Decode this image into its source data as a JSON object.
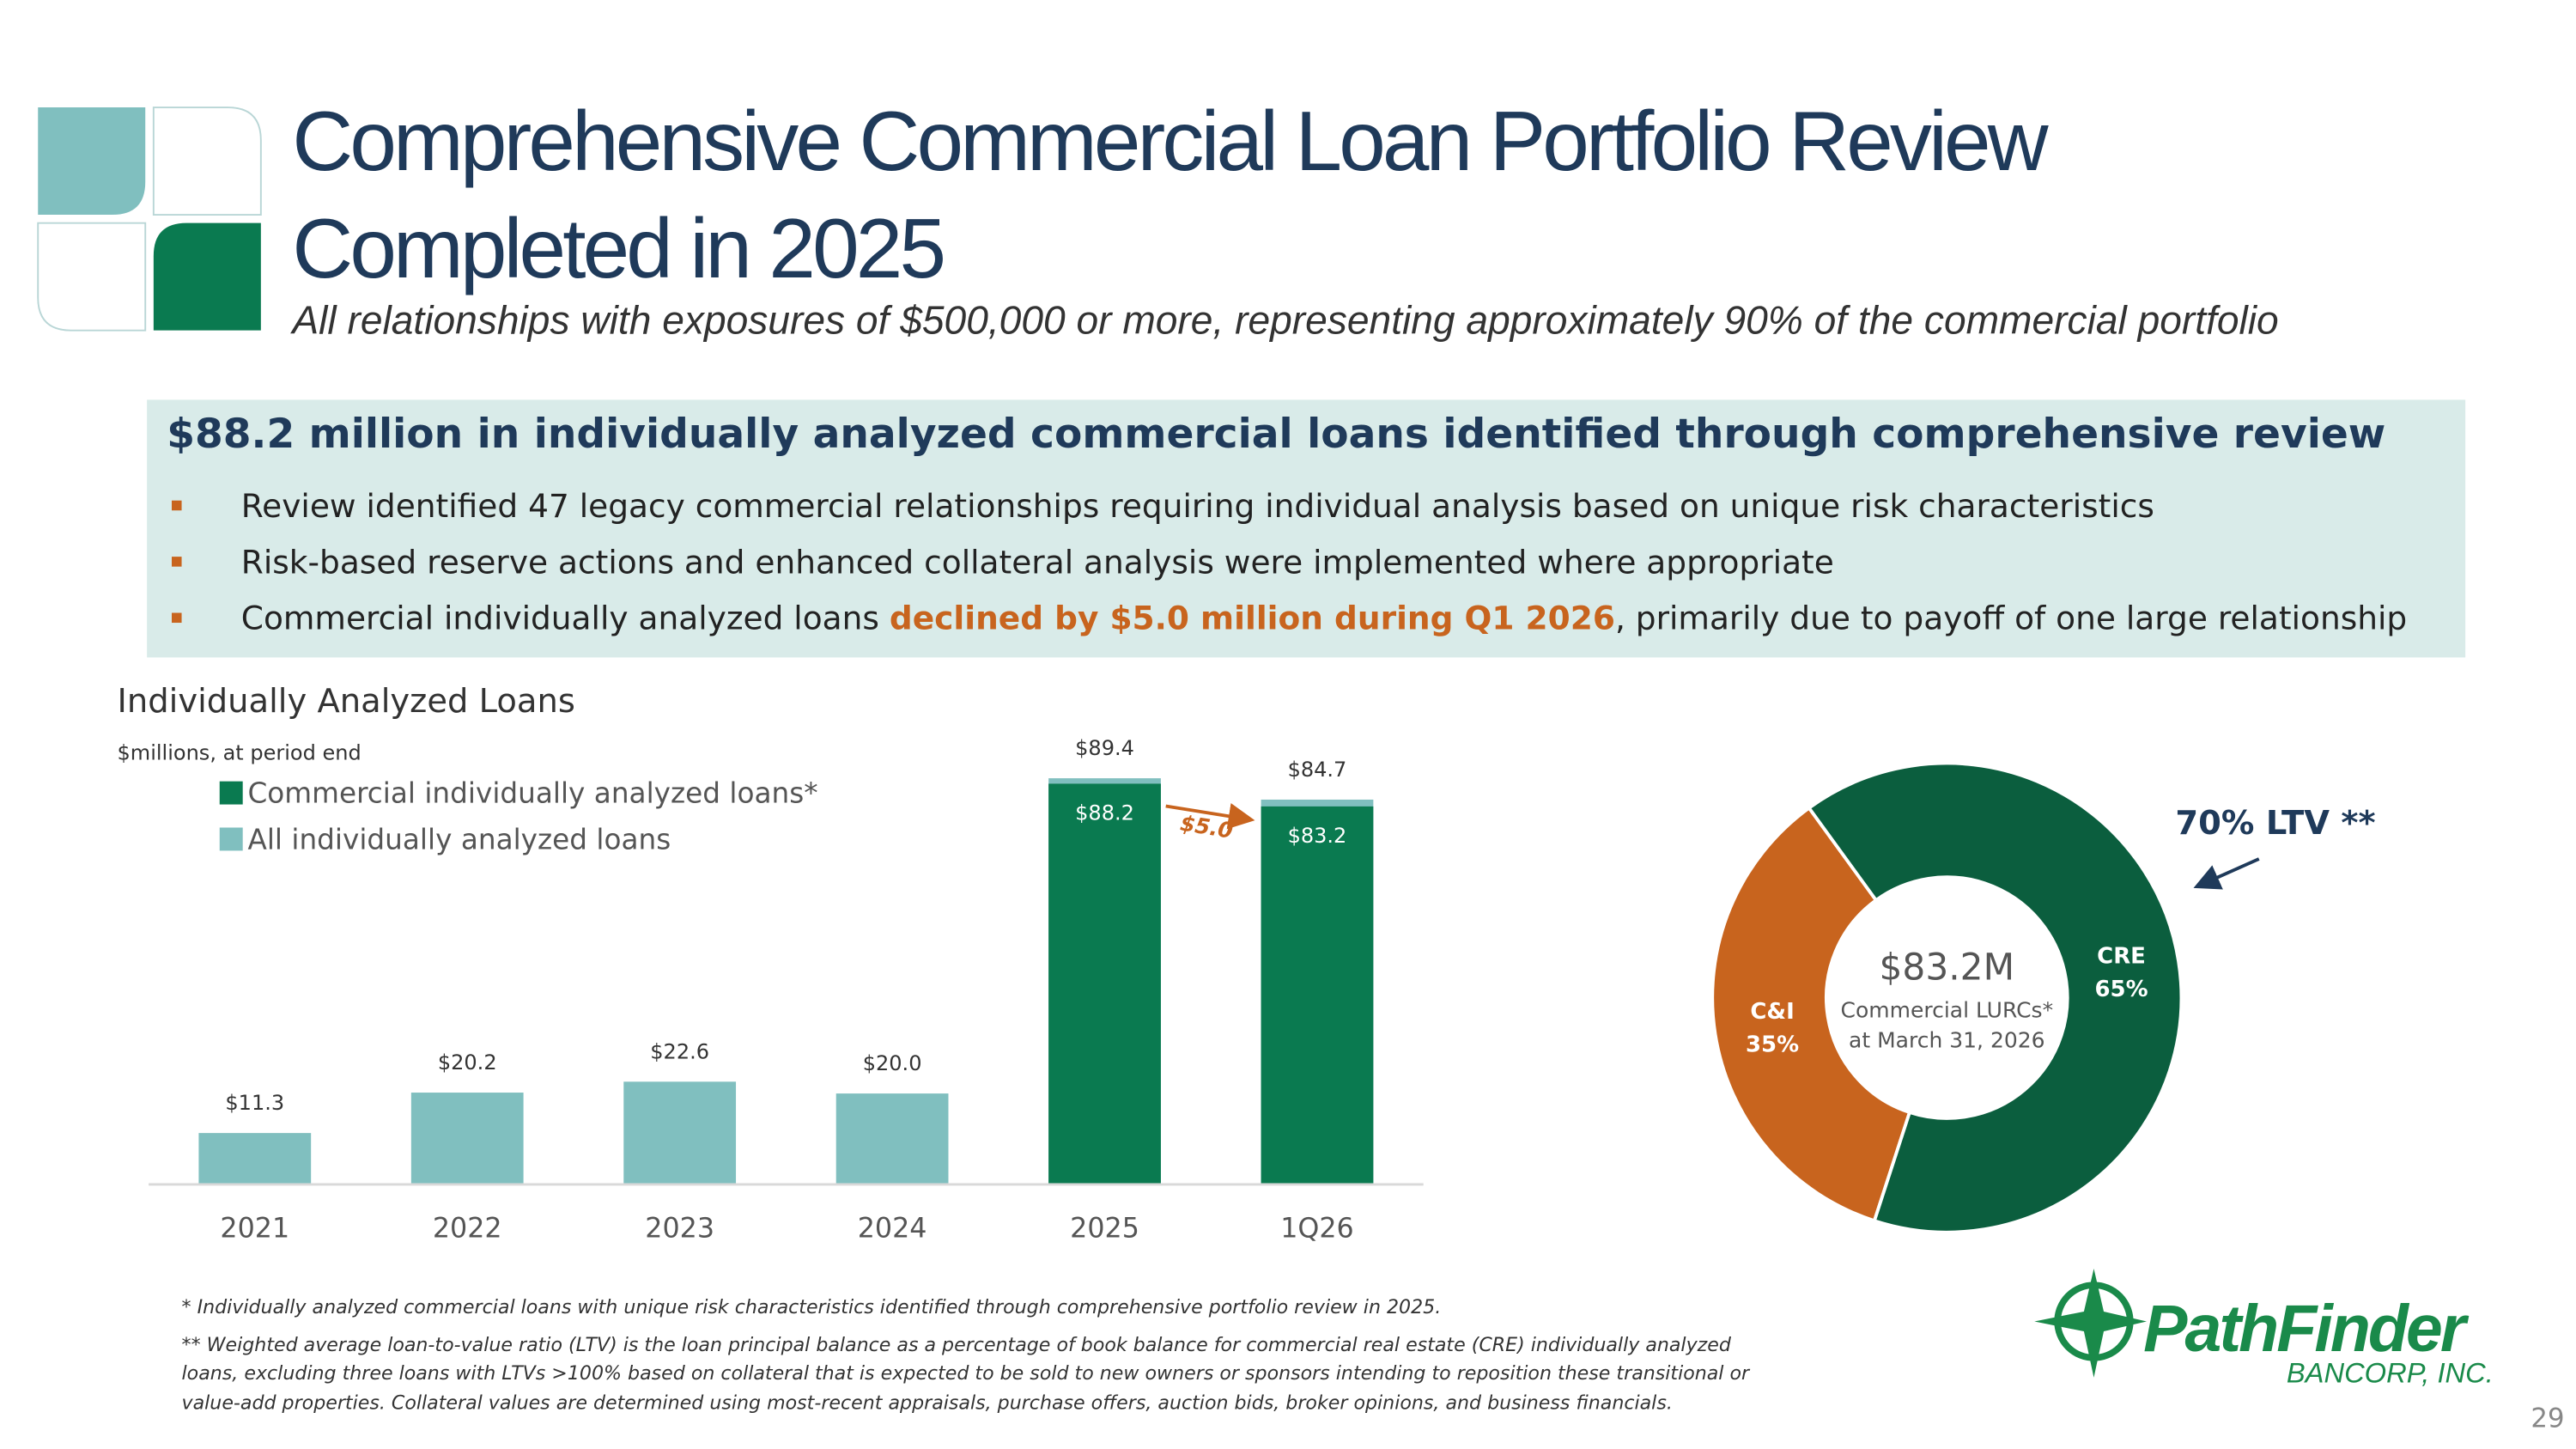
{
  "header": {
    "title_lines": [
      "Comprehensive Commercial Loan Portfolio Review",
      "Completed in 2025"
    ],
    "subtitle": "All relationships with exposures of $500,000 or more, representing approximately 90% of the commercial portfolio"
  },
  "banner": {
    "heading": "$88.2 million in individually analyzed commercial loans identified through comprehensive review",
    "bullets": [
      [
        "Review identified 47 legacy commercial relationships requiring individual analysis based on unique risk characteristics"
      ],
      [
        "Risk-based reserve actions and enhanced collateral analysis were implemented where appropriate"
      ],
      [
        "Commercial individually analyzed loans ",
        "declined by $5.0 million during Q1 2026",
        ", primarily due to payoff of one large relationship"
      ]
    ]
  },
  "chart_data": [
    {
      "type": "bar",
      "title": "Individually Analyzed Loans",
      "subtitle": "$millions, at period end",
      "categories": [
        "2021",
        "2022",
        "2023",
        "2024",
        "2025",
        "1Q26"
      ],
      "series": [
        {
          "name": "Commercial individually analyzed loans*",
          "color": "#0a7a50",
          "values": [
            null,
            null,
            null,
            null,
            88.2,
            83.2
          ],
          "value_labels": [
            null,
            null,
            null,
            null,
            "$88.2",
            "$83.2"
          ]
        },
        {
          "name": "All individually analyzed loans",
          "color": "#80bfbf",
          "values": [
            11.3,
            20.2,
            22.6,
            20.0,
            89.4,
            84.7
          ],
          "value_labels": [
            "$11.3",
            "$20.2",
            "$22.6",
            "$20.0",
            "$89.4",
            "$84.7"
          ]
        }
      ],
      "ylim": [
        0,
        100
      ],
      "annotation": "$5.0"
    },
    {
      "type": "donut",
      "categories": [
        "C&I",
        "CRE"
      ],
      "values": [
        35,
        65
      ],
      "value_labels": [
        "35%",
        "65%"
      ],
      "colors": [
        "#c8641e",
        "#0b5e3e"
      ],
      "center_lines": [
        "$83.2M",
        "Commercial LURCs*",
        "at March 31, 2026"
      ],
      "annotation": "70% LTV **"
    }
  ],
  "footnotes": [
    "* Individually analyzed commercial loans with unique risk characteristics identified through comprehensive portfolio review in 2025.",
    "** Weighted average loan-to-value ratio (LTV) is the loan principal balance as a percentage of book balance for commercial real estate (CRE) individually analyzed",
    "loans, excluding three loans with LTVs >100% based on collateral that is expected to be sold to new owners or sponsors intending to reposition these transitional or",
    "value-add properties. Collateral values are determined using most-recent appraisals, purchase offers, auction bids, broker opinions, and business financials."
  ],
  "logo": {
    "name": "PathFinder",
    "sub": "BANCORP, INC."
  },
  "page_number": "29"
}
